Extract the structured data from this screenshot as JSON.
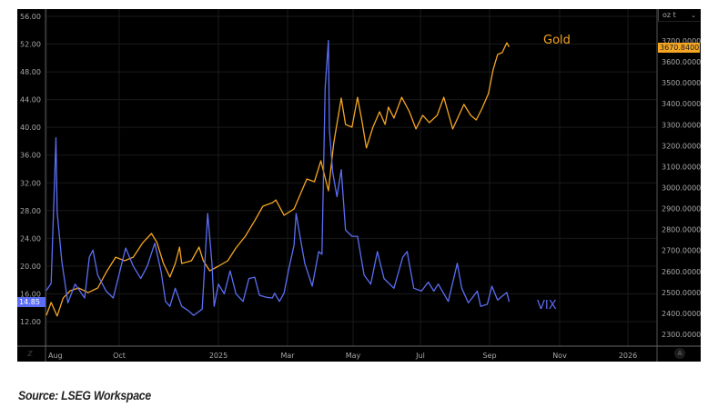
{
  "caption": "Source: LSEG Workspace",
  "ui": {
    "unit_selector": "oz t",
    "auto_scale_label": "A",
    "zoom_icon": "zoom-icon"
  },
  "chart_data": {
    "type": "line",
    "title": "",
    "grid": true,
    "x_ticks": [
      {
        "label": "Aug",
        "date": "2024-08-01"
      },
      {
        "label": "Oct",
        "date": "2024-10-01"
      },
      {
        "label": "2025",
        "date": "2025-01-01"
      },
      {
        "label": "Mar",
        "date": "2025-03-01"
      },
      {
        "label": "May",
        "date": "2025-05-01"
      },
      {
        "label": "Jul",
        "date": "2025-07-01"
      },
      {
        "label": "Sep",
        "date": "2025-09-01"
      },
      {
        "label": "Nov",
        "date": "2025-11-01"
      },
      {
        "label": "2026",
        "date": "2026-01-01"
      }
    ],
    "y_left": {
      "ticks": [
        "56.00",
        "52.00",
        "48.00",
        "44.00",
        "40.00",
        "36.00",
        "32.00",
        "28.00",
        "24.00",
        "20.00",
        "16.00",
        "12.00"
      ],
      "range": [
        10,
        57
      ]
    },
    "y_right": {
      "unit": "oz t",
      "ticks": [
        "3700.0000",
        "3600.0000",
        "3500.0000",
        "3400.0000",
        "3300.0000",
        "3200.0000",
        "3100.0000",
        "3000.0000",
        "2900.0000",
        "2800.0000",
        "2700.0000",
        "2600.0000",
        "2500.0000",
        "2400.0000",
        "2300.0000"
      ],
      "range": [
        2230,
        3750
      ]
    },
    "series": [
      {
        "name": "Gold",
        "axis": "right",
        "color": "#f5a623",
        "last_value": "3670.8400",
        "points": [
          [
            "2024-08-01",
            2391
          ],
          [
            "2024-08-05",
            2452
          ],
          [
            "2024-08-10",
            2387
          ],
          [
            "2024-08-15",
            2473
          ],
          [
            "2024-08-21",
            2508
          ],
          [
            "2024-08-28",
            2521
          ],
          [
            "2024-09-05",
            2499
          ],
          [
            "2024-09-13",
            2521
          ],
          [
            "2024-09-20",
            2595
          ],
          [
            "2024-09-28",
            2668
          ],
          [
            "2024-10-06",
            2651
          ],
          [
            "2024-10-14",
            2668
          ],
          [
            "2024-10-23",
            2738
          ],
          [
            "2024-10-31",
            2781
          ],
          [
            "2024-11-05",
            2738
          ],
          [
            "2024-11-11",
            2638
          ],
          [
            "2024-11-17",
            2573
          ],
          [
            "2024-11-22",
            2638
          ],
          [
            "2024-11-26",
            2716
          ],
          [
            "2024-11-28",
            2638
          ],
          [
            "2024-12-07",
            2651
          ],
          [
            "2024-12-14",
            2716
          ],
          [
            "2024-12-18",
            2651
          ],
          [
            "2024-12-24",
            2603
          ],
          [
            "2025-01-01",
            2625
          ],
          [
            "2025-01-09",
            2651
          ],
          [
            "2025-01-16",
            2712
          ],
          [
            "2025-01-24",
            2768
          ],
          [
            "2025-02-01",
            2842
          ],
          [
            "2025-02-08",
            2911
          ],
          [
            "2025-02-16",
            2928
          ],
          [
            "2025-02-19",
            2941
          ],
          [
            "2025-02-26",
            2868
          ],
          [
            "2025-03-07",
            2898
          ],
          [
            "2025-03-19",
            3041
          ],
          [
            "2025-03-26",
            3028
          ],
          [
            "2025-04-01",
            3128
          ],
          [
            "2025-04-08",
            2985
          ],
          [
            "2025-04-13",
            3214
          ],
          [
            "2025-04-20",
            3427
          ],
          [
            "2025-04-24",
            3301
          ],
          [
            "2025-04-30",
            3288
          ],
          [
            "2025-05-05",
            3431
          ],
          [
            "2025-05-09",
            3319
          ],
          [
            "2025-05-13",
            3189
          ],
          [
            "2025-05-19",
            3288
          ],
          [
            "2025-05-25",
            3362
          ],
          [
            "2025-05-30",
            3301
          ],
          [
            "2025-06-02",
            3384
          ],
          [
            "2025-06-07",
            3332
          ],
          [
            "2025-06-14",
            3431
          ],
          [
            "2025-06-21",
            3362
          ],
          [
            "2025-06-27",
            3280
          ],
          [
            "2025-07-03",
            3345
          ],
          [
            "2025-07-09",
            3310
          ],
          [
            "2025-07-16",
            3345
          ],
          [
            "2025-07-22",
            3431
          ],
          [
            "2025-07-30",
            3280
          ],
          [
            "2025-08-09",
            3397
          ],
          [
            "2025-08-15",
            3345
          ],
          [
            "2025-08-20",
            3323
          ],
          [
            "2025-08-25",
            3375
          ],
          [
            "2025-08-31",
            3449
          ],
          [
            "2025-09-04",
            3561
          ],
          [
            "2025-09-08",
            3635
          ],
          [
            "2025-09-12",
            3644
          ],
          [
            "2025-09-16",
            3691
          ],
          [
            "2025-09-18",
            3670.84
          ]
        ]
      },
      {
        "name": "VIX",
        "axis": "left",
        "color": "#5b6ef5",
        "last_value": "14.85",
        "points": [
          [
            "2024-08-01",
            16.5
          ],
          [
            "2024-08-05",
            17.5
          ],
          [
            "2024-08-09",
            38.5
          ],
          [
            "2024-08-10",
            27.8
          ],
          [
            "2024-08-14",
            20.6
          ],
          [
            "2024-08-19",
            14.7
          ],
          [
            "2024-08-25",
            17.4
          ],
          [
            "2024-09-02",
            15.4
          ],
          [
            "2024-09-06",
            21.3
          ],
          [
            "2024-09-09",
            22.3
          ],
          [
            "2024-09-13",
            18.7
          ],
          [
            "2024-09-20",
            16.4
          ],
          [
            "2024-09-26",
            15.4
          ],
          [
            "2024-10-02",
            19.5
          ],
          [
            "2024-10-07",
            22.6
          ],
          [
            "2024-10-14",
            20.0
          ],
          [
            "2024-10-21",
            18.2
          ],
          [
            "2024-10-27",
            20.0
          ],
          [
            "2024-11-03",
            23.3
          ],
          [
            "2024-11-09",
            19.1
          ],
          [
            "2024-11-13",
            14.9
          ],
          [
            "2024-11-17",
            14.2
          ],
          [
            "2024-11-22",
            16.8
          ],
          [
            "2024-11-28",
            14.2
          ],
          [
            "2024-12-04",
            13.6
          ],
          [
            "2024-12-09",
            12.9
          ],
          [
            "2024-12-17",
            13.8
          ],
          [
            "2024-12-22",
            27.6
          ],
          [
            "2024-12-26",
            20.4
          ],
          [
            "2024-12-28",
            14.2
          ],
          [
            "2025-01-01",
            17.4
          ],
          [
            "2025-01-06",
            16.0
          ],
          [
            "2025-01-11",
            19.3
          ],
          [
            "2025-01-16",
            16.0
          ],
          [
            "2025-01-22",
            14.9
          ],
          [
            "2025-01-27",
            18.2
          ],
          [
            "2025-02-01",
            18.4
          ],
          [
            "2025-02-05",
            15.8
          ],
          [
            "2025-02-11",
            15.5
          ],
          [
            "2025-02-16",
            15.4
          ],
          [
            "2025-02-18",
            16.1
          ],
          [
            "2025-02-22",
            14.9
          ],
          [
            "2025-02-26",
            16.1
          ],
          [
            "2025-03-02",
            19.5
          ],
          [
            "2025-03-07",
            23.0
          ],
          [
            "2025-03-09",
            27.6
          ],
          [
            "2025-03-13",
            23.9
          ],
          [
            "2025-03-17",
            20.4
          ],
          [
            "2025-03-24",
            17.1
          ],
          [
            "2025-03-30",
            22.1
          ],
          [
            "2025-04-02",
            21.7
          ],
          [
            "2025-04-05",
            45.7
          ],
          [
            "2025-04-08",
            52.5
          ],
          [
            "2025-04-09",
            39.6
          ],
          [
            "2025-04-12",
            33.5
          ],
          [
            "2025-04-16",
            30.0
          ],
          [
            "2025-04-20",
            33.9
          ],
          [
            "2025-04-24",
            25.2
          ],
          [
            "2025-04-30",
            24.3
          ],
          [
            "2025-05-05",
            24.3
          ],
          [
            "2025-05-11",
            18.7
          ],
          [
            "2025-05-17",
            17.4
          ],
          [
            "2025-05-23",
            22.1
          ],
          [
            "2025-05-29",
            18.2
          ],
          [
            "2025-06-07",
            16.8
          ],
          [
            "2025-06-15",
            21.3
          ],
          [
            "2025-06-19",
            22.1
          ],
          [
            "2025-06-25",
            16.8
          ],
          [
            "2025-07-02",
            16.4
          ],
          [
            "2025-07-08",
            17.7
          ],
          [
            "2025-07-13",
            16.4
          ],
          [
            "2025-07-17",
            17.4
          ],
          [
            "2025-07-26",
            14.9
          ],
          [
            "2025-08-03",
            20.4
          ],
          [
            "2025-08-07",
            16.8
          ],
          [
            "2025-08-13",
            14.7
          ],
          [
            "2025-08-21",
            16.4
          ],
          [
            "2025-08-24",
            14.2
          ],
          [
            "2025-08-30",
            14.5
          ],
          [
            "2025-09-03",
            17.1
          ],
          [
            "2025-09-08",
            15.1
          ],
          [
            "2025-09-16",
            16.2
          ],
          [
            "2025-09-18",
            14.85
          ]
        ]
      }
    ]
  }
}
